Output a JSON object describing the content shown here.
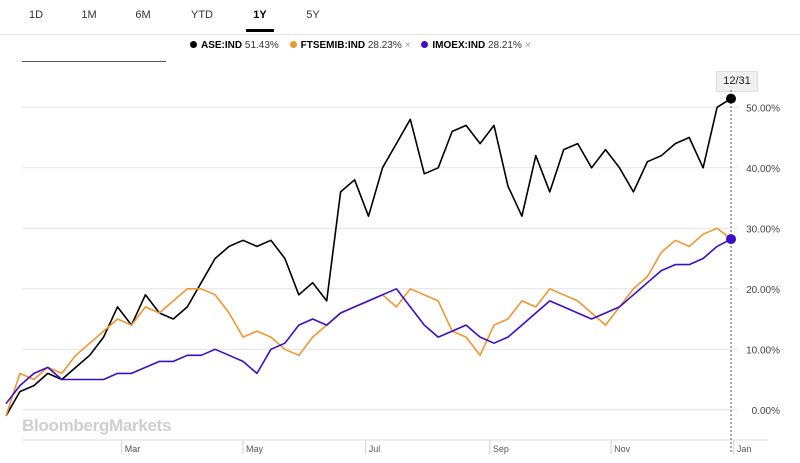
{
  "tabs": [
    "1D",
    "1M",
    "6M",
    "YTD",
    "1Y",
    "5Y"
  ],
  "active_tab": "1Y",
  "legend": [
    {
      "symbol": "ASE:IND",
      "pct": "51.43%",
      "color": "#000000",
      "removable": false
    },
    {
      "symbol": "FTSEMIB:IND",
      "pct": "28.23%",
      "color": "#f0962e",
      "removable": true
    },
    {
      "symbol": "IMOEX:IND",
      "pct": "28.21%",
      "color": "#3a0fc8",
      "removable": true
    }
  ],
  "remove_glyph": "×",
  "date_label": "12/31",
  "watermark": "BloombergMarkets",
  "chart_data": {
    "type": "line",
    "title": "",
    "xlabel": "",
    "ylabel": "",
    "x_ticks": [
      "Mar",
      "May",
      "Jul",
      "Sep",
      "Nov",
      "Jan"
    ],
    "y_ticks": [
      "0.00%",
      "10.00%",
      "20.00%",
      "30.00%",
      "40.00%",
      "50.00%"
    ],
    "ylim": [
      -5,
      55
    ],
    "x_unit": "weeks since start (0 = first trading day, ~Jan 3)",
    "xlim": [
      0,
      52.5
    ],
    "series": [
      {
        "name": "ASE:IND",
        "color": "#000000",
        "x": [
          0,
          1,
          2,
          3,
          4,
          5,
          6,
          7,
          8,
          9,
          10,
          11,
          12,
          13,
          14,
          15,
          16,
          17,
          18,
          19,
          20,
          21,
          22,
          23,
          24,
          25,
          26,
          27,
          28,
          29,
          30,
          31,
          32,
          33,
          34,
          35,
          36,
          37,
          38,
          39,
          40,
          41,
          42,
          43,
          44,
          45,
          46,
          47,
          48,
          49,
          50,
          51,
          52
        ],
        "values": [
          -1,
          3,
          4,
          6,
          5,
          7,
          9,
          12,
          17,
          14,
          19,
          16,
          15,
          17,
          21,
          25,
          27,
          28,
          27,
          28,
          25,
          19,
          21,
          18,
          36,
          38,
          32,
          40,
          44,
          48,
          39,
          40,
          46,
          47,
          44,
          47,
          37,
          32,
          42,
          36,
          43,
          44,
          40,
          43,
          40,
          36,
          41,
          42,
          44,
          45,
          40,
          50,
          51.43
        ]
      },
      {
        "name": "FTSEMIB:IND",
        "color": "#f0962e",
        "x": [
          0,
          1,
          2,
          3,
          4,
          5,
          6,
          7,
          8,
          9,
          10,
          11,
          12,
          13,
          14,
          15,
          16,
          17,
          18,
          19,
          20,
          21,
          22,
          23,
          24,
          25,
          26,
          27,
          28,
          29,
          30,
          31,
          32,
          33,
          34,
          35,
          36,
          37,
          38,
          39,
          40,
          41,
          42,
          43,
          44,
          45,
          46,
          47,
          48,
          49,
          50,
          51,
          52
        ],
        "values": [
          -1,
          6,
          5,
          7,
          6,
          9,
          11,
          13,
          15,
          14,
          17,
          16,
          18,
          20,
          20,
          19,
          16,
          12,
          13,
          12,
          10,
          9,
          12,
          14,
          16,
          17,
          18,
          19,
          17,
          20,
          19,
          18,
          13,
          12,
          9,
          14,
          15,
          18,
          17,
          20,
          19,
          18,
          16,
          14,
          17,
          20,
          22,
          26,
          28,
          27,
          29,
          30,
          28.23
        ]
      },
      {
        "name": "IMOEX:IND",
        "color": "#3a0fc8",
        "x": [
          0,
          1,
          2,
          3,
          4,
          5,
          6,
          7,
          8,
          9,
          10,
          11,
          12,
          13,
          14,
          15,
          16,
          17,
          18,
          19,
          20,
          21,
          22,
          23,
          24,
          25,
          26,
          27,
          28,
          29,
          30,
          31,
          32,
          33,
          34,
          35,
          36,
          37,
          38,
          39,
          40,
          41,
          42,
          43,
          44,
          45,
          46,
          47,
          48,
          49,
          50,
          51,
          52
        ],
        "values": [
          1,
          4,
          6,
          7,
          5,
          5,
          5,
          5,
          6,
          6,
          7,
          8,
          8,
          9,
          9,
          10,
          9,
          8,
          6,
          10,
          11,
          14,
          15,
          14,
          16,
          17,
          18,
          19,
          20,
          17,
          14,
          12,
          13,
          14,
          12,
          11,
          12,
          14,
          16,
          18,
          17,
          16,
          15,
          16,
          17,
          19,
          21,
          23,
          24,
          24,
          25,
          27,
          28.21
        ]
      }
    ]
  }
}
